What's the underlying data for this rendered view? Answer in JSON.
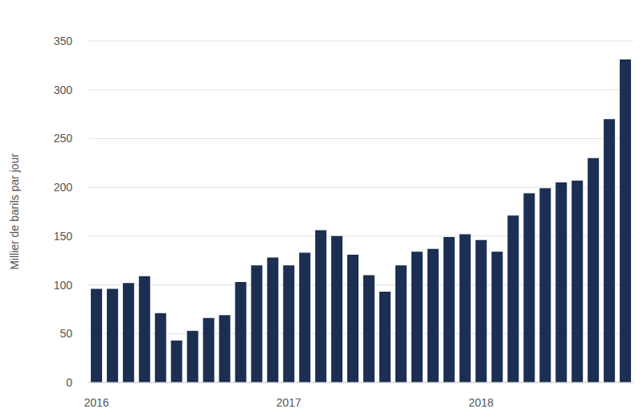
{
  "chart_data": {
    "type": "bar",
    "y_label": "Millier de barils par jour",
    "categories": [
      "2016",
      null,
      null,
      null,
      null,
      null,
      null,
      null,
      null,
      null,
      null,
      null,
      "2017",
      null,
      null,
      null,
      null,
      null,
      null,
      null,
      null,
      null,
      null,
      null,
      "2018",
      null,
      null,
      null,
      null,
      null,
      null,
      null,
      null,
      null
    ],
    "values": [
      96,
      96,
      102,
      109,
      71,
      43,
      53,
      66,
      69,
      103,
      120,
      128,
      120,
      133,
      156,
      150,
      131,
      110,
      93,
      120,
      134,
      137,
      149,
      152,
      146,
      134,
      171,
      194,
      199,
      205,
      207,
      230,
      270,
      331
    ],
    "color": "#1b2f52",
    "ylim": [
      0,
      350
    ],
    "yticks": [
      0,
      50,
      100,
      150,
      200,
      250,
      300,
      350
    ],
    "grid": true
  }
}
